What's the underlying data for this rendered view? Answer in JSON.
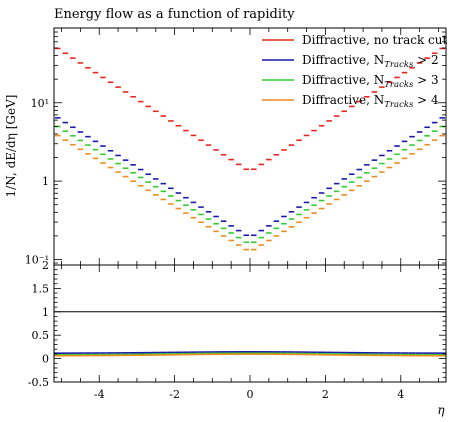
{
  "chart_data": {
    "type": "line",
    "title": "Energy flow as a function of rapidity",
    "xlabel": "η",
    "ylabel": "1/N, dE/dη [GeV]",
    "xlim": [
      -5.2,
      5.2
    ],
    "main_panel": {
      "yscale": "log",
      "ylim": [
        0.085,
        90
      ],
      "ytick_labels": [
        {
          "value": 0.1,
          "label": "10⁻¹"
        },
        {
          "value": 1,
          "label": "1"
        },
        {
          "value": 10,
          "label": "10¹"
        }
      ]
    },
    "ratio_panel": {
      "ylim": [
        -0.5,
        2.0
      ],
      "ytick_labels": [
        {
          "value": -0.5,
          "label": "-0.5"
        },
        {
          "value": 0,
          "label": "0"
        },
        {
          "value": 0.5,
          "label": "0.5"
        },
        {
          "value": 1,
          "label": "1"
        },
        {
          "value": 1.5,
          "label": "1.5"
        },
        {
          "value": 2,
          "label": "2"
        }
      ]
    },
    "xtick_labels": [
      {
        "value": -4,
        "label": "-4"
      },
      {
        "value": -2,
        "label": "-2"
      },
      {
        "value": 0,
        "label": "0"
      },
      {
        "value": 2,
        "label": "2"
      },
      {
        "value": 4,
        "label": "4"
      }
    ],
    "x_bin_width": 0.2,
    "legend_position": "top-right",
    "series": [
      {
        "name": "Diffractive, no track cut",
        "color": "#e8261f",
        "eta0": 1.32,
        "slope": 0.71,
        "legend_text": "Diffractive, no track cut"
      },
      {
        "name": "Diffractive, N_Tracks > 2",
        "color": "#1a1aaa",
        "eta0": 0.19,
        "slope": 0.69,
        "legend_text": "Diffractive, N",
        "legend_sub": "Tracks",
        "legend_tail": " > 2"
      },
      {
        "name": "Diffractive, N_Tracks > 3",
        "color": "#33cc33",
        "eta0": 0.155,
        "slope": 0.68,
        "legend_text": "Diffractive, N",
        "legend_sub": "Tracks",
        "legend_tail": " > 3"
      },
      {
        "name": "Diffractive, N_Tracks > 4",
        "color": "#ee8c1e",
        "eta0": 0.125,
        "slope": 0.67,
        "legend_text": "Diffractive, N",
        "legend_sub": "Tracks",
        "legend_tail": " > 4"
      }
    ],
    "ratio_series": [
      {
        "name": "Diffractive, N_Tracks > 2",
        "color": "#1a1aaa",
        "base": 0.115,
        "center": 0.145
      },
      {
        "name": "Diffractive, N_Tracks > 3",
        "color": "#33cc33",
        "base": 0.08,
        "center": 0.115
      },
      {
        "name": "Diffractive, N_Tracks > 4",
        "color": "#ee8c1e",
        "base": 0.06,
        "center": 0.095
      }
    ],
    "reference_line": 1
  }
}
